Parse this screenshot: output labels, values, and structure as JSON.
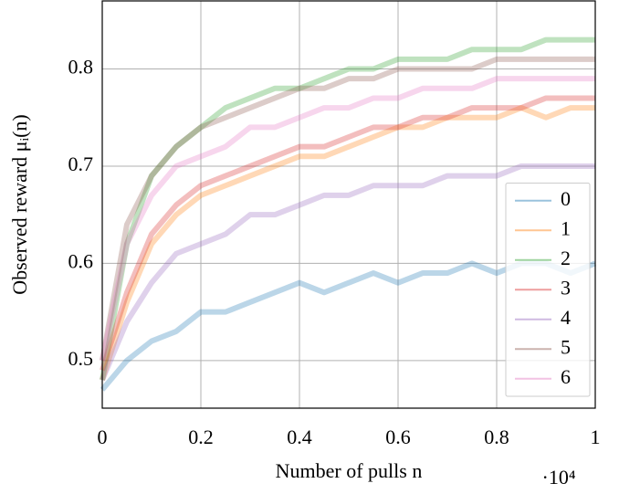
{
  "chart_data": {
    "type": "line",
    "x_label": "Number of pulls n",
    "y_label": "Observed reward μᵢ(n)",
    "x_multiplier": "·10⁴",
    "x": [
      0,
      500,
      1000,
      1500,
      2000,
      2500,
      3000,
      3500,
      4000,
      4500,
      5000,
      5500,
      6000,
      6500,
      7000,
      7500,
      8000,
      8500,
      9000,
      9500,
      10000
    ],
    "series": [
      {
        "name": "0",
        "color": "#1f77b4",
        "values": [
          0.47,
          0.5,
          0.52,
          0.53,
          0.55,
          0.55,
          0.56,
          0.57,
          0.58,
          0.57,
          0.58,
          0.59,
          0.58,
          0.59,
          0.59,
          0.6,
          0.59,
          0.6,
          0.6,
          0.59,
          0.6
        ]
      },
      {
        "name": "1",
        "color": "#ff7f0e",
        "values": [
          0.48,
          0.56,
          0.62,
          0.65,
          0.67,
          0.68,
          0.69,
          0.7,
          0.71,
          0.71,
          0.72,
          0.73,
          0.74,
          0.74,
          0.75,
          0.75,
          0.75,
          0.76,
          0.75,
          0.76,
          0.76
        ]
      },
      {
        "name": "2",
        "color": "#2ca02c",
        "values": [
          0.48,
          0.62,
          0.69,
          0.72,
          0.74,
          0.76,
          0.77,
          0.78,
          0.78,
          0.79,
          0.8,
          0.8,
          0.81,
          0.81,
          0.81,
          0.82,
          0.82,
          0.82,
          0.83,
          0.83,
          0.83
        ]
      },
      {
        "name": "3",
        "color": "#d62728",
        "values": [
          0.49,
          0.57,
          0.63,
          0.66,
          0.68,
          0.69,
          0.7,
          0.71,
          0.72,
          0.72,
          0.73,
          0.74,
          0.74,
          0.75,
          0.75,
          0.76,
          0.76,
          0.76,
          0.77,
          0.77,
          0.77
        ]
      },
      {
        "name": "4",
        "color": "#9467bd",
        "values": [
          0.48,
          0.54,
          0.58,
          0.61,
          0.62,
          0.63,
          0.65,
          0.65,
          0.66,
          0.67,
          0.67,
          0.68,
          0.68,
          0.68,
          0.69,
          0.69,
          0.69,
          0.7,
          0.7,
          0.7,
          0.7
        ]
      },
      {
        "name": "5",
        "color": "#8c564b",
        "values": [
          0.5,
          0.64,
          0.69,
          0.72,
          0.74,
          0.75,
          0.76,
          0.77,
          0.78,
          0.78,
          0.79,
          0.79,
          0.8,
          0.8,
          0.8,
          0.8,
          0.81,
          0.81,
          0.81,
          0.81,
          0.81
        ]
      },
      {
        "name": "6",
        "color": "#e377c2",
        "values": [
          0.5,
          0.62,
          0.67,
          0.7,
          0.71,
          0.72,
          0.74,
          0.74,
          0.75,
          0.76,
          0.76,
          0.77,
          0.77,
          0.78,
          0.78,
          0.78,
          0.79,
          0.79,
          0.79,
          0.79,
          0.79
        ]
      }
    ],
    "xlim": [
      0,
      10000
    ],
    "xticks": [
      0,
      {
        "value": 2000,
        "label": "0.2"
      },
      {
        "value": 4000,
        "label": "0.4"
      },
      {
        "value": 6000,
        "label": "0.6"
      },
      {
        "value": 8000,
        "label": "0.8"
      },
      {
        "value": 10000,
        "label": "1"
      }
    ],
    "ylim": [
      0.451,
      0.87
    ],
    "yticks": [
      0.5,
      0.6,
      0.7,
      0.8
    ],
    "grid": true,
    "legend": "lower right"
  }
}
